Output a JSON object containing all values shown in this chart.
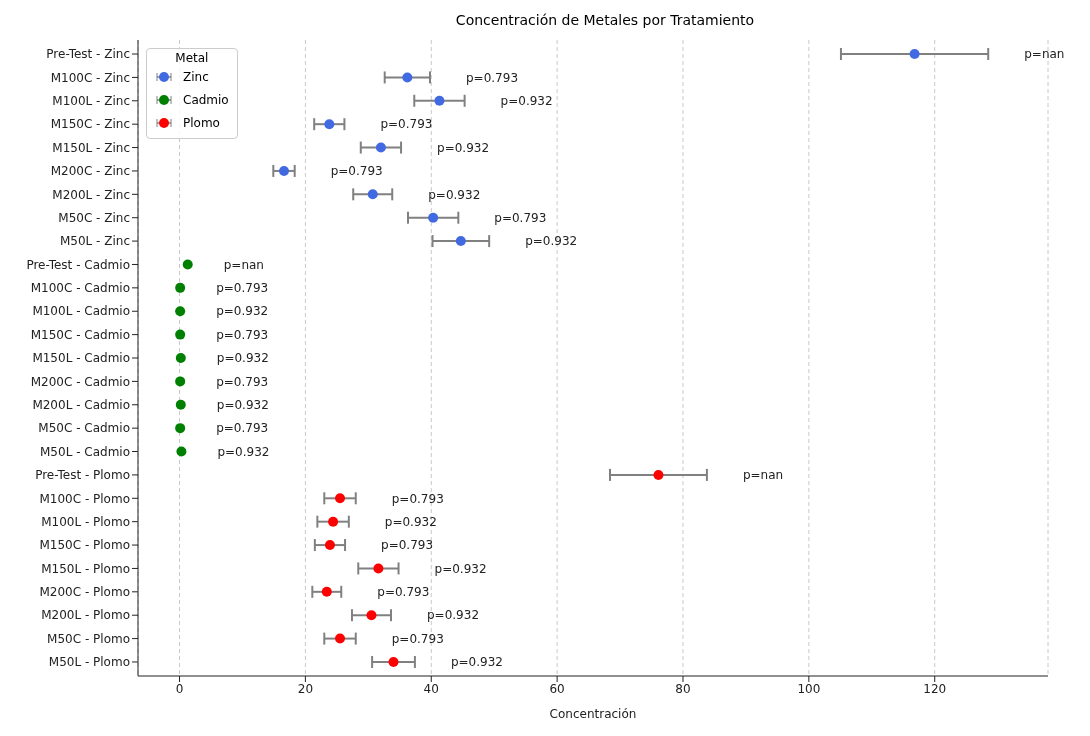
{
  "chart_data": {
    "type": "scatter",
    "title": "Concentración de Metales por Tratamiento",
    "xlabel": "Concentración",
    "legend_title": "Metal",
    "legend": "top left",
    "grid": "x",
    "marker": "circle",
    "orientation": "horizontal",
    "categories": [
      "Pre-Test - Zinc",
      "M100C - Zinc",
      "M100L - Zinc",
      "M150C - Zinc",
      "M150L - Zinc",
      "M200C - Zinc",
      "M200L - Zinc",
      "M50C - Zinc",
      "M50L - Zinc",
      "Pre-Test - Cadmio",
      "M100C - Cadmio",
      "M100L - Cadmio",
      "M150C - Cadmio",
      "M150L - Cadmio",
      "M200C - Cadmio",
      "M200L - Cadmio",
      "M50C - Cadmio",
      "M50L - Cadmio",
      "Pre-Test - Plomo",
      "M100C - Plomo",
      "M100L - Plomo",
      "M150C - Plomo",
      "M150L - Plomo",
      "M200C - Plomo",
      "M200L - Plomo",
      "M50C - Plomo",
      "M50L - Plomo"
    ],
    "xlim": [
      -6.6,
      138
    ],
    "xticks": [
      0,
      20,
      40,
      60,
      80,
      100,
      120
    ],
    "series": [
      {
        "name": "Zinc",
        "color": "#4169e1",
        "values": [
          116.8,
          36.2,
          41.3,
          23.8,
          32.0,
          16.6,
          30.7,
          40.3,
          44.7,
          null,
          null,
          null,
          null,
          null,
          null,
          null,
          null,
          null,
          null,
          null,
          null,
          null,
          null,
          null,
          null,
          null,
          null
        ],
        "errors": [
          11.7,
          3.6,
          4.0,
          2.4,
          3.2,
          1.7,
          3.1,
          4.0,
          4.5,
          null,
          null,
          null,
          null,
          null,
          null,
          null,
          null,
          null,
          null,
          null,
          null,
          null,
          null,
          null,
          null,
          null,
          null
        ]
      },
      {
        "name": "Cadmio",
        "color": "#008000",
        "values": [
          null,
          null,
          null,
          null,
          null,
          null,
          null,
          null,
          null,
          1.3,
          0.1,
          0.1,
          0.1,
          0.2,
          0.1,
          0.2,
          0.1,
          0.3,
          null,
          null,
          null,
          null,
          null,
          null,
          null,
          null,
          null
        ]
      },
      {
        "name": "Plomo",
        "color": "#ff0000",
        "values": [
          null,
          null,
          null,
          null,
          null,
          null,
          null,
          null,
          null,
          null,
          null,
          null,
          null,
          null,
          null,
          null,
          null,
          null,
          76.1,
          25.5,
          24.4,
          23.9,
          31.6,
          23.4,
          30.5,
          25.5,
          34.0
        ],
        "errors": [
          null,
          null,
          null,
          null,
          null,
          null,
          null,
          null,
          null,
          null,
          null,
          null,
          null,
          null,
          null,
          null,
          null,
          null,
          7.7,
          2.5,
          2.5,
          2.4,
          3.2,
          2.3,
          3.1,
          2.5,
          3.4
        ]
      }
    ],
    "annotations": [
      "p=nan",
      "p=0.793",
      "p=0.932",
      "p=0.793",
      "p=0.932",
      "p=0.793",
      "p=0.932",
      "p=0.793",
      "p=0.932",
      "p=nan",
      "p=0.793",
      "p=0.932",
      "p=0.793",
      "p=0.932",
      "p=0.793",
      "p=0.932",
      "p=0.793",
      "p=0.932",
      "p=nan",
      "p=0.793",
      "p=0.932",
      "p=0.793",
      "p=0.932",
      "p=0.793",
      "p=0.932",
      "p=0.793",
      "p=0.932"
    ]
  }
}
